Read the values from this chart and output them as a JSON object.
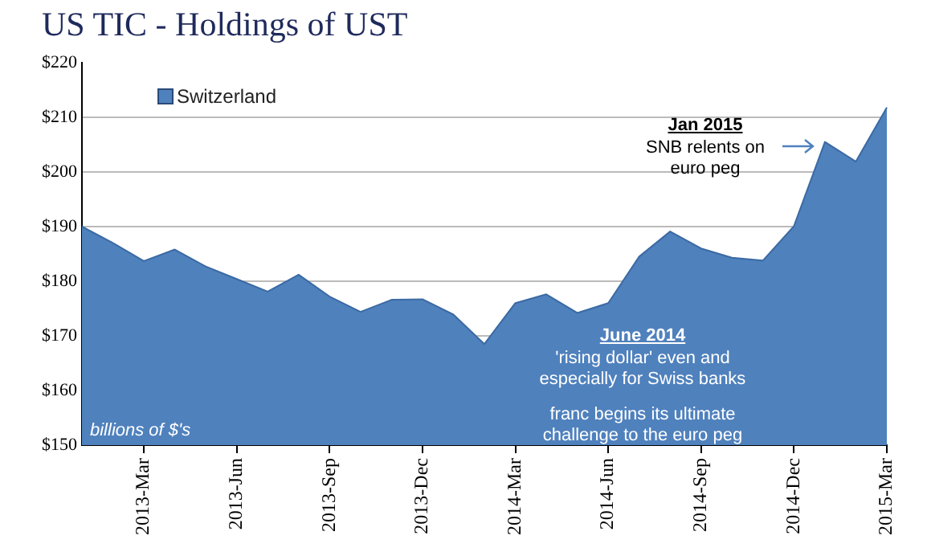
{
  "chart_data": {
    "type": "area",
    "title": "US TIC - Holdings of UST",
    "categories": [
      null,
      null,
      "2013-Mar",
      null,
      null,
      "2013-Jun",
      null,
      null,
      "2013-Sep",
      null,
      null,
      "2013-Dec",
      null,
      null,
      "2014-Mar",
      null,
      null,
      "2014-Jun",
      null,
      null,
      "2014-Sep",
      null,
      null,
      "2014-Dec",
      null,
      null,
      "2015-Mar"
    ],
    "series": [
      {
        "name": "Switzerland",
        "color": "#4f81bd",
        "values": [
          190,
          187,
          183.7,
          185.8,
          182.7,
          180.4,
          178.1,
          181.2,
          177.2,
          174.4,
          176.6,
          176.7,
          173.9,
          168.5,
          176,
          177.6,
          174.2,
          176,
          184.5,
          189.1,
          186,
          184.3,
          183.8,
          190.1,
          205.5,
          201.9,
          211.8
        ]
      }
    ],
    "ylim": [
      150,
      220
    ],
    "yticks": [
      {
        "value": 150,
        "label": "$150"
      },
      {
        "value": 160,
        "label": "$160"
      },
      {
        "value": 170,
        "label": "$170"
      },
      {
        "value": 180,
        "label": "$180"
      },
      {
        "value": 190,
        "label": "$190"
      },
      {
        "value": 200,
        "label": "$200"
      },
      {
        "value": 210,
        "label": "$210"
      },
      {
        "value": 220,
        "label": "$220"
      }
    ],
    "grid": "y",
    "legend": "top left",
    "marker": "none",
    "annotations": [
      "Jan 2015",
      "SNB relents on euro peg",
      "June 2014",
      "'rising dollar' even and especially for Swiss banks",
      "franc begins its ultimate challenge to the euro peg",
      "billions of $'s"
    ]
  }
}
